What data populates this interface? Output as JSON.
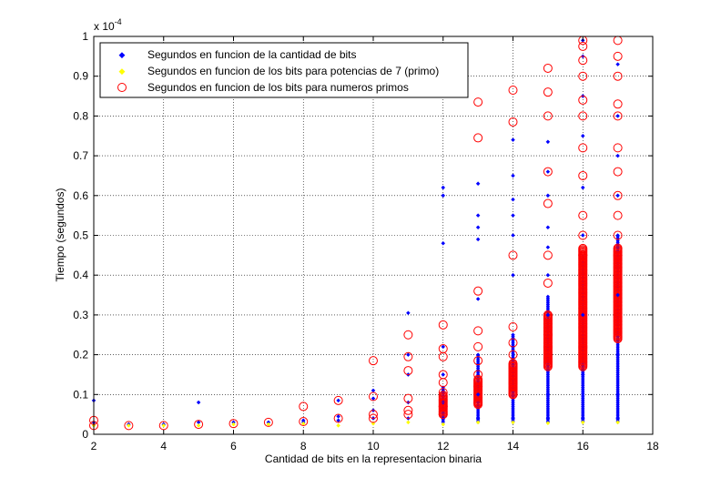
{
  "chart_data": {
    "type": "scatter",
    "title": "",
    "xlabel": "Cantidad de bits en la representacion binaria",
    "ylabel": "Tiempo (segundos)",
    "xlim": [
      2,
      18
    ],
    "ylim": [
      0,
      1
    ],
    "y_multiplier": "x 10",
    "y_multiplier_exponent": "-4",
    "xticks": [
      2,
      4,
      6,
      8,
      10,
      12,
      14,
      16,
      18
    ],
    "yticks": [
      0,
      0.1,
      0.2,
      0.3,
      0.4,
      0.5,
      0.6,
      0.7,
      0.8,
      0.9,
      1
    ],
    "grid": true,
    "legend_position": "top-left",
    "series": [
      {
        "name": "Segundos en funcion de la cantidad de bits",
        "marker": "dot",
        "color": "#0000ff",
        "x": [
          2,
          2,
          3,
          4,
          5,
          5,
          6,
          7,
          8,
          8,
          9,
          9,
          9,
          10,
          10,
          10,
          10,
          11,
          11,
          11,
          11,
          11,
          12,
          12,
          12,
          12,
          12,
          12,
          12,
          13,
          13,
          13,
          13,
          13,
          13,
          13,
          13,
          14,
          14,
          14,
          14,
          14,
          14,
          14,
          14,
          15,
          15,
          15,
          15,
          15,
          15,
          15,
          15,
          15,
          16,
          16,
          16,
          16,
          16,
          16,
          16,
          16,
          16,
          17,
          17,
          17,
          17,
          17,
          17,
          17,
          17,
          17
        ],
        "y": [
          0.085,
          0.03,
          0.025,
          0.025,
          0.08,
          0.03,
          0.03,
          0.03,
          0.035,
          0.03,
          0.085,
          0.045,
          0.035,
          0.11,
          0.09,
          0.06,
          0.04,
          0.305,
          0.2,
          0.15,
          0.08,
          0.04,
          0.62,
          0.6,
          0.48,
          0.22,
          0.15,
          0.08,
          0.04,
          0.63,
          0.55,
          0.52,
          0.49,
          0.34,
          0.2,
          0.1,
          0.04,
          0.74,
          0.65,
          0.59,
          0.55,
          0.5,
          0.4,
          0.25,
          0.04,
          0.735,
          0.66,
          0.6,
          0.52,
          0.47,
          0.4,
          0.3,
          0.1,
          0.04,
          0.99,
          0.95,
          0.85,
          0.75,
          0.62,
          0.5,
          0.3,
          0.15,
          0.04,
          0.93,
          0.8,
          0.7,
          0.6,
          0.5,
          0.35,
          0.2,
          0.1,
          0.04
        ]
      },
      {
        "name": "Segundos en funcion de los bits para potencias de 7 (primo)",
        "marker": "dot",
        "color": "#ffff00",
        "x": [
          2,
          3,
          4,
          5,
          6,
          7,
          8,
          9,
          10,
          11,
          12,
          13,
          14,
          15,
          16,
          17
        ],
        "y": [
          0.022,
          0.022,
          0.022,
          0.022,
          0.025,
          0.025,
          0.027,
          0.022,
          0.027,
          0.03,
          0.025,
          0.03,
          0.03,
          0.028,
          0.03,
          0.03
        ]
      },
      {
        "name": "Segundos en funcion de los bits para numeros primos",
        "marker": "circle",
        "color": "#ff0000",
        "x": [
          2,
          2,
          3,
          4,
          5,
          6,
          7,
          8,
          8,
          9,
          9,
          10,
          10,
          10,
          10,
          11,
          11,
          11,
          11,
          11,
          11,
          12,
          12,
          12,
          12,
          12,
          12,
          12,
          12,
          13,
          13,
          13,
          13,
          13,
          13,
          13,
          13,
          13,
          14,
          14,
          14,
          14,
          14,
          14,
          14,
          14,
          14,
          15,
          15,
          15,
          15,
          15,
          15,
          15,
          15,
          15,
          15,
          16,
          16,
          16,
          16,
          16,
          16,
          16,
          16,
          16,
          16,
          16,
          17,
          17,
          17,
          17,
          17,
          17,
          17,
          17,
          17,
          17,
          17
        ],
        "y": [
          0.035,
          0.022,
          0.022,
          0.022,
          0.025,
          0.027,
          0.03,
          0.07,
          0.032,
          0.085,
          0.04,
          0.185,
          0.095,
          0.05,
          0.04,
          0.25,
          0.195,
          0.16,
          0.09,
          0.06,
          0.05,
          0.275,
          0.215,
          0.195,
          0.15,
          0.13,
          0.105,
          0.07,
          0.05,
          0.835,
          0.745,
          0.36,
          0.26,
          0.22,
          0.185,
          0.15,
          0.12,
          0.08,
          0.865,
          0.785,
          0.45,
          0.27,
          0.23,
          0.2,
          0.17,
          0.13,
          0.1,
          0.92,
          0.86,
          0.8,
          0.66,
          0.58,
          0.45,
          0.38,
          0.3,
          0.25,
          0.2,
          0.99,
          0.975,
          0.94,
          0.9,
          0.84,
          0.8,
          0.72,
          0.65,
          0.55,
          0.5,
          0.45,
          0.99,
          0.95,
          0.9,
          0.83,
          0.8,
          0.72,
          0.66,
          0.6,
          0.55,
          0.5,
          0.45
        ]
      }
    ],
    "dense_bands": [
      {
        "x": 12,
        "y_range": [
          0.05,
          0.1
        ]
      },
      {
        "x": 13,
        "y_range": [
          0.075,
          0.14
        ]
      },
      {
        "x": 14,
        "y_range": [
          0.1,
          0.18
        ]
      },
      {
        "x": 15,
        "y_range": [
          0.17,
          0.3
        ]
      },
      {
        "x": 16,
        "y_range": [
          0.17,
          0.47
        ]
      },
      {
        "x": 17,
        "y_range": [
          0.24,
          0.47
        ]
      }
    ],
    "dense_blue_ranges": [
      {
        "x": 12,
        "y_range": [
          0.03,
          0.12
        ]
      },
      {
        "x": 13,
        "y_range": [
          0.03,
          0.2
        ]
      },
      {
        "x": 14,
        "y_range": [
          0.03,
          0.25
        ]
      },
      {
        "x": 15,
        "y_range": [
          0.03,
          0.35
        ]
      },
      {
        "x": 16,
        "y_range": [
          0.03,
          0.45
        ]
      },
      {
        "x": 17,
        "y_range": [
          0.03,
          0.5
        ]
      }
    ]
  }
}
